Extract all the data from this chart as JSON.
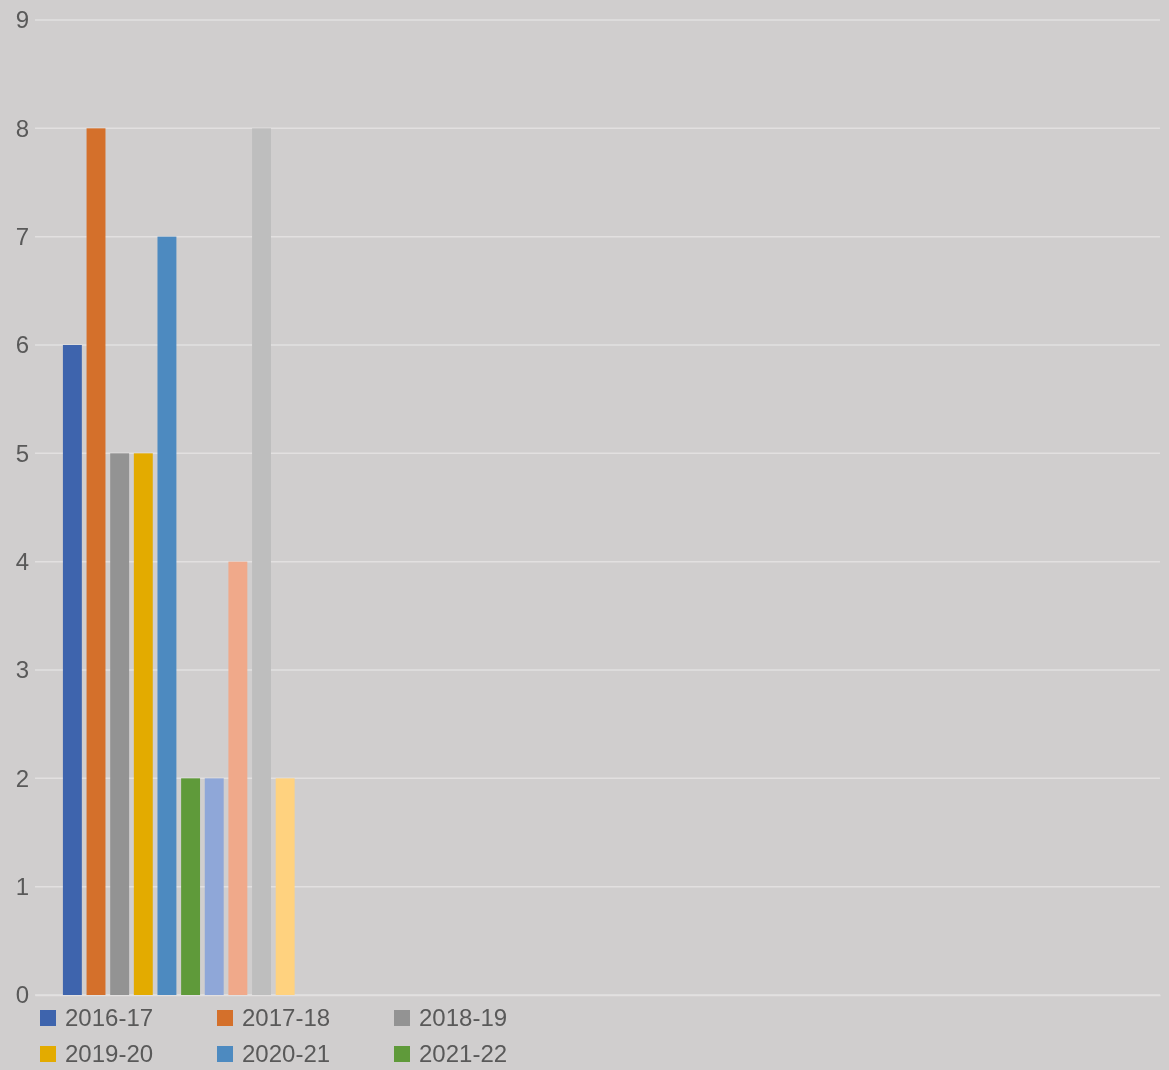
{
  "chart_data": {
    "type": "bar",
    "categories": [
      null,
      null,
      null,
      null
    ],
    "series": [
      {
        "name": "2016-17",
        "color": "#3e64ad",
        "values": [
          6,
          null,
          null,
          null
        ]
      },
      {
        "name": "2017-18",
        "color": "#d4702b",
        "values": [
          8,
          null,
          null,
          null
        ]
      },
      {
        "name": "2018-19",
        "color": "#939393",
        "values": [
          5,
          null,
          null,
          null
        ]
      },
      {
        "name": "2019-20",
        "color": "#e3ab00",
        "values": [
          5,
          null,
          null,
          null
        ]
      },
      {
        "name": "2020-21",
        "color": "#4d8ac0",
        "values": [
          7,
          null,
          null,
          null
        ]
      },
      {
        "name": "2021-22",
        "color": "#5f9a3a",
        "values": [
          2,
          null,
          null,
          null
        ]
      },
      {
        "color": "#8fa7d8",
        "values": [
          2,
          null,
          null,
          null
        ]
      },
      {
        "color": "#f0a98a",
        "values": [
          4,
          null,
          null,
          null
        ]
      },
      {
        "color": "#bebebe",
        "values": [
          8,
          null,
          null,
          null
        ]
      },
      {
        "color": "#ffd27f",
        "values": [
          2,
          null,
          null,
          null
        ]
      }
    ],
    "ylim": [
      0,
      9
    ],
    "yticks": [
      0,
      1,
      2,
      3,
      4,
      5,
      6,
      7,
      8,
      9
    ],
    "grid": "y",
    "legend": "bottom left"
  }
}
